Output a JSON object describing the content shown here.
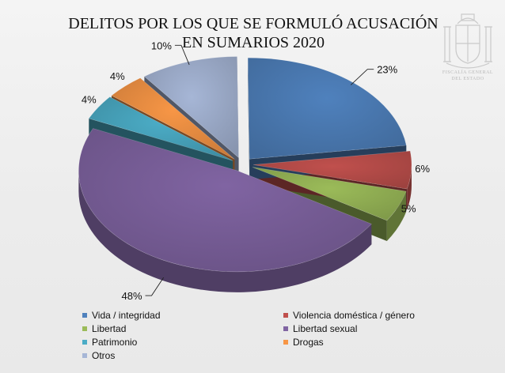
{
  "title_lines": [
    "DELITOS POR LOS QUE SE FORMULÓ ACUSACIÓN",
    "EN SUMARIOS 2020"
  ],
  "emblem": {
    "icon": "coat-of-arms-icon",
    "text_lines": [
      "FISCALÍA GENERAL",
      "DEL ESTADO"
    ]
  },
  "chart_data": {
    "type": "pie",
    "title": "DELITOS POR LOS QUE SE FORMULÓ ACUSACIÓN EN SUMARIOS 2020",
    "unit": "%",
    "style": "3d-exploded",
    "legend_position": "bottom",
    "slices": [
      {
        "name": "Vida / integridad",
        "value": 23,
        "label": "23%",
        "color": "#4f81bd"
      },
      {
        "name": "Violencia doméstica / género",
        "value": 6,
        "label": "6%",
        "color": "#c0504d"
      },
      {
        "name": "Libertad",
        "value": 5,
        "label": "5%",
        "color": "#9bbb59"
      },
      {
        "name": "Libertad sexual",
        "value": 48,
        "label": "48%",
        "color": "#8064a2"
      },
      {
        "name": "Patrimonio",
        "value": 4,
        "label": "4%",
        "color": "#4bacc6"
      },
      {
        "name": "Drogas",
        "value": 4,
        "label": "4%",
        "color": "#f79646"
      },
      {
        "name": "Otros",
        "value": 10,
        "label": "10%",
        "color": "#a6b6d6"
      }
    ]
  }
}
